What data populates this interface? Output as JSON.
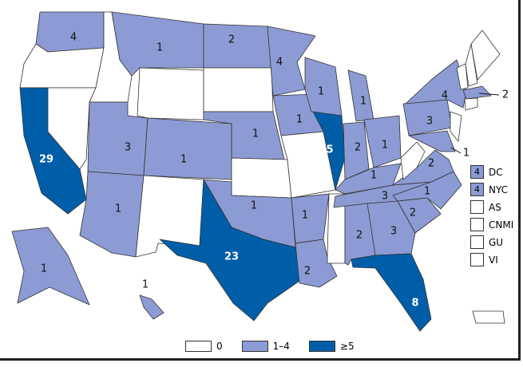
{
  "colors": {
    "zero": "#ffffff",
    "low": "#8c9bd4",
    "high": "#005ea8"
  },
  "legend": [
    {
      "label": "0",
      "level": "zero"
    },
    {
      "label": "1–4",
      "level": "low"
    },
    {
      "label": "≥5",
      "level": "high"
    }
  ],
  "states": {
    "WA": 4,
    "OR": 0,
    "CA": 29,
    "NV": 0,
    "ID": 0,
    "MT": 1,
    "WY": 0,
    "UT": 3,
    "CO": 1,
    "AZ": 1,
    "NM": 0,
    "ND": 2,
    "SD": 0,
    "NE": 1,
    "KS": 0,
    "OK": 1,
    "TX": 23,
    "MN": 4,
    "IA": 1,
    "MO": 0,
    "AR": 1,
    "LA": 2,
    "MS": 0,
    "AL": 2,
    "WI": 1,
    "IL": 5,
    "MI": 1,
    "IN": 2,
    "OH": 1,
    "KY": 1,
    "TN": 3,
    "GA": 3,
    "FL": 8,
    "SC": 2,
    "NC": 1,
    "VA": 2,
    "WV": 0,
    "PA": 3,
    "NY": 4,
    "MD": 1,
    "NJ": 0,
    "VT": 0,
    "NH": 0,
    "ME": 0,
    "MA": 2,
    "CT": 0,
    "AK": 1,
    "HI": 1,
    "PR": 0
  },
  "insets": [
    {
      "label": "DC",
      "value": "4",
      "level": "low"
    },
    {
      "label": "NYC",
      "value": "4",
      "level": "low"
    },
    {
      "label": "AS",
      "value": "",
      "level": "zero"
    },
    {
      "label": "CNMI",
      "value": "",
      "level": "zero"
    },
    {
      "label": "GU",
      "value": "",
      "level": "zero"
    },
    {
      "label": "VI",
      "value": "",
      "level": "zero"
    }
  ]
}
